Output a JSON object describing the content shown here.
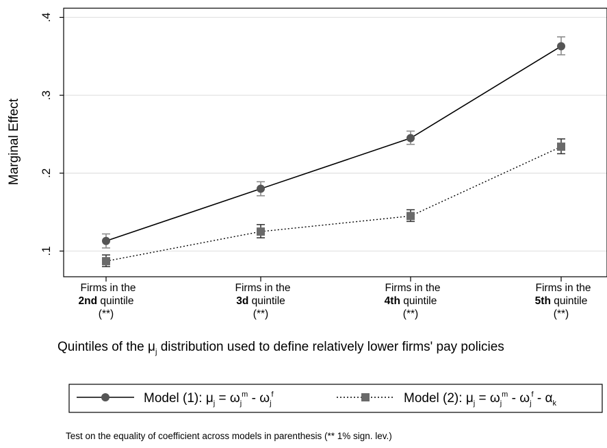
{
  "chart_data": {
    "type": "line",
    "ylabel": "Marginal Effect",
    "yticks": [
      ".1",
      ".2",
      ".3",
      ".4"
    ],
    "ytick_values": [
      0.1,
      0.2,
      0.3,
      0.4
    ],
    "ylim": [
      0.07,
      0.415
    ],
    "categories": [
      {
        "line1": "Firms in the",
        "bold": "2nd",
        "rest": " quintile",
        "sig": "(**)"
      },
      {
        "line1": "Firms in the",
        "bold": "3d",
        "rest": " quintile",
        "sig": "(**)"
      },
      {
        "line1": "Firms in the",
        "bold": "4th",
        "rest": " quintile",
        "sig": "(**)"
      },
      {
        "line1": "Firms in the",
        "bold": "5th",
        "rest": " quintile",
        "sig": "(**)"
      }
    ],
    "xlabel": {
      "before": "Quintiles of the ",
      "mu": "μ",
      "sub": "j",
      "after": " distribution used to define relatively lower firms' pay policies"
    },
    "grid": true,
    "series": [
      {
        "marker": "circle",
        "linestyle": "solid",
        "values": [
          0.113,
          0.18,
          0.245,
          0.363
        ],
        "ci_low": [
          0.104,
          0.171,
          0.237,
          0.352
        ],
        "ci_high": [
          0.122,
          0.189,
          0.254,
          0.375
        ]
      },
      {
        "marker": "square",
        "linestyle": "dotted",
        "values": [
          0.087,
          0.125,
          0.145,
          0.234
        ],
        "ci_low": [
          0.08,
          0.117,
          0.138,
          0.225
        ],
        "ci_high": [
          0.095,
          0.134,
          0.153,
          0.244
        ]
      }
    ],
    "legend": {
      "position": "bottom",
      "entry1": {
        "prefix": "Model (1): ",
        "mu": "μ",
        "j": "j",
        "eq": " = ω",
        "j2": "j",
        "m": "m",
        "minus": " - ω",
        "j3": "j",
        "f": "f"
      },
      "entry2": {
        "prefix": "Model (2): ",
        "mu": "μ",
        "j": "j",
        "eq": " = ω",
        "j2": "j",
        "m": "m",
        "minus": " - ω",
        "j3": "j",
        "f": "f",
        "minus2": " - α",
        "k": "k"
      }
    },
    "note": "Test on the equality of coefficient across models in parenthesis (** 1% sign. lev.)"
  }
}
